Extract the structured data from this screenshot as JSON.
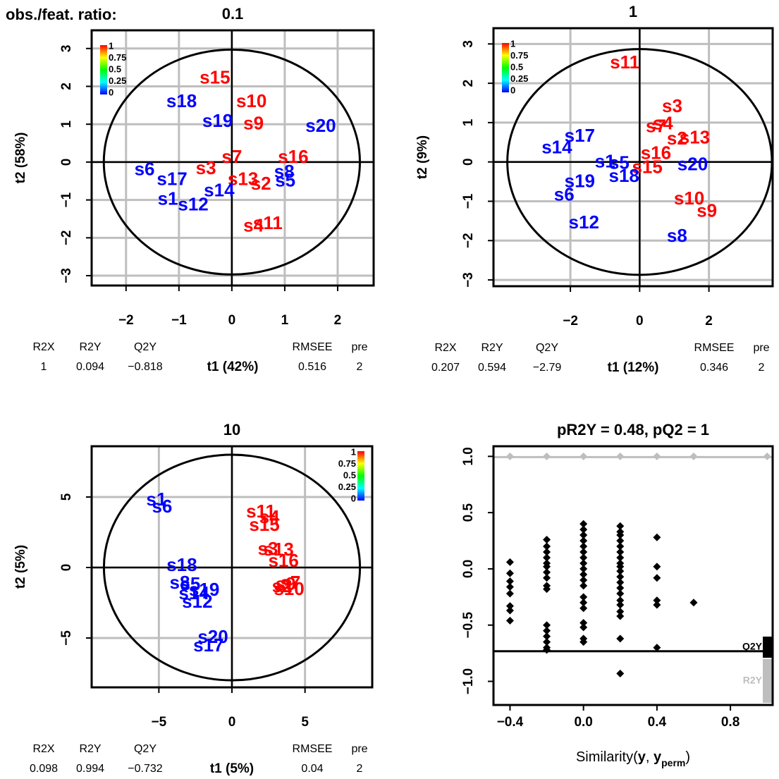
{
  "figure_label": "obs./feat. ratio:",
  "chart_data": [
    {
      "type": "scatter",
      "title": "0.1",
      "xlabel": "t1 (42%)",
      "ylabel": "t2 (58%)",
      "xlim": [
        -2.65,
        2.68
      ],
      "ylim": [
        -3.26,
        3.48
      ],
      "xticks": [
        {
          "value": -2,
          "label": "−2"
        },
        {
          "value": -1,
          "label": "−1"
        },
        0,
        1,
        2
      ],
      "yticks": [
        {
          "value": -3,
          "label": "−3"
        },
        {
          "value": -2,
          "label": "−2"
        },
        {
          "value": -1,
          "label": "−1"
        },
        0,
        1,
        2,
        3
      ],
      "grid": true,
      "ellipse": [
        2.42,
        2.97
      ],
      "labels": [
        "s15",
        "s18",
        "s10",
        "s19",
        "s9",
        "s20",
        "s7",
        "s16",
        "s3",
        "s6",
        "s17",
        "s13",
        "s2",
        "s8",
        "s5",
        "s1",
        "s14",
        "s12",
        "s11",
        "s4"
      ],
      "x": [
        -0.32,
        -0.95,
        0.37,
        -0.27,
        0.41,
        1.68,
        0,
        1.16,
        -0.49,
        -1.65,
        -1.13,
        0.21,
        0.55,
        0.99,
        1.01,
        -1.21,
        -0.24,
        -0.73,
        0.68,
        0.41
      ],
      "y": [
        2.2,
        1.58,
        1.58,
        1.06,
        0.99,
        0.93,
        0.11,
        0.11,
        -0.19,
        -0.22,
        -0.48,
        -0.48,
        -0.6,
        -0.28,
        -0.52,
        -1.0,
        -0.78,
        -1.15,
        -1.64,
        -1.71
      ],
      "colors": [
        "#ff0000",
        "#0000ff",
        "#ff0000",
        "#0000ff",
        "#ff0000",
        "#0000ff",
        "#ff0000",
        "#ff0000",
        "#ff0000",
        "#0000ff",
        "#0000ff",
        "#ff0000",
        "#ff0000",
        "#0000ff",
        "#0000ff",
        "#0000ff",
        "#0000ff",
        "#0000ff",
        "#ff0000",
        "#ff0000"
      ],
      "colorbar": {
        "corner": "top-left",
        "ticks": [
          0,
          0.25,
          0.5,
          0.75,
          1
        ],
        "colors": [
          "#0000ff",
          "#00ffff",
          "#00ff00",
          "#ffff00",
          "#ff0000"
        ]
      },
      "stats": {
        "names": [
          "R2X",
          "R2Y",
          "Q2Y",
          "RMSEE",
          "pre"
        ],
        "values": [
          1,
          0.094,
          {
            "value": -0.818,
            "label": "−0.818"
          },
          0.516,
          2
        ]
      }
    },
    {
      "type": "scatter",
      "title": "1",
      "xlabel": "t1 (12%)",
      "ylabel": "t2 (9%)",
      "xlim": [
        -4.22,
        3.84
      ],
      "ylim": [
        -3.16,
        3.4
      ],
      "xticks": [
        {
          "value": -2,
          "label": "−2"
        },
        0,
        2
      ],
      "yticks": [
        {
          "value": -3,
          "label": "−3"
        },
        {
          "value": -2,
          "label": "−2"
        },
        {
          "value": -1,
          "label": "−1"
        },
        0,
        1,
        2,
        3
      ],
      "grid": true,
      "ellipse": [
        3.82,
        2.87
      ],
      "labels": [
        "s11",
        "s3",
        "s7",
        "s4",
        "s13",
        "s2",
        "s17",
        "s14",
        "s16",
        "s1",
        "s5",
        "s15",
        "s18",
        "s20",
        "s19",
        "s6",
        "s12",
        "s10",
        "s9",
        "s8"
      ],
      "x": [
        -0.43,
        0.94,
        0.47,
        0.67,
        1.59,
        1.08,
        -1.73,
        -2.39,
        0.47,
        -1.0,
        -0.59,
        0.22,
        -0.45,
        1.53,
        -1.73,
        -2.18,
        -1.61,
        1.43,
        1.94,
        1.08
      ],
      "y": [
        2.5,
        1.39,
        0.88,
        0.95,
        0.59,
        0.57,
        0.64,
        0.34,
        0.2,
        -0.02,
        -0.05,
        -0.16,
        -0.38,
        -0.09,
        -0.52,
        -0.86,
        -1.57,
        -0.96,
        -1.27,
        -1.91
      ],
      "colors": [
        "#ff0000",
        "#ff0000",
        "#ff0000",
        "#ff0000",
        "#ff0000",
        "#ff0000",
        "#0000ff",
        "#0000ff",
        "#ff0000",
        "#0000ff",
        "#0000ff",
        "#ff0000",
        "#0000ff",
        "#0000ff",
        "#0000ff",
        "#0000ff",
        "#0000ff",
        "#ff0000",
        "#ff0000",
        "#0000ff"
      ],
      "colorbar": {
        "corner": "top-left",
        "ticks": [
          0,
          0.25,
          0.5,
          0.75,
          1
        ],
        "colors": [
          "#0000ff",
          "#00ffff",
          "#00ff00",
          "#ffff00",
          "#ff0000"
        ]
      },
      "stats": {
        "names": [
          "R2X",
          "R2Y",
          "Q2Y",
          "RMSEE",
          "pre"
        ],
        "values": [
          0.207,
          0.594,
          {
            "value": -2.79,
            "label": "−2.79"
          },
          0.346,
          2
        ]
      }
    },
    {
      "type": "scatter",
      "title": "10",
      "xlabel": "t1 (5%)",
      "ylabel": "t2 (5%)",
      "xlim": [
        -9.6,
        9.6
      ],
      "ylim": [
        -8.5,
        8.6
      ],
      "xticks": [
        {
          "value": -5,
          "label": "−5"
        },
        0,
        5
      ],
      "yticks": [
        {
          "value": -5,
          "label": "−5"
        },
        0,
        5
      ],
      "grid": true,
      "ellipse": [
        8.76,
        8.0
      ],
      "labels": [
        "s1",
        "s6",
        "s11",
        "s4",
        "s15",
        "s3",
        "s13",
        "s16",
        "s9",
        "s10",
        "s2",
        "s7",
        "s18",
        "s8",
        "s5",
        "s19",
        "s14",
        "s12",
        "s20",
        "s17"
      ],
      "x": [
        -5.17,
        -4.78,
        1.98,
        2.56,
        2.22,
        2.46,
        3.19,
        3.53,
        3.67,
        3.91,
        3.43,
        4.0,
        -3.43,
        -3.57,
        -2.85,
        -1.9,
        -2.6,
        -2.37,
        -1.3,
        -1.6
      ],
      "y": [
        4.75,
        4.25,
        3.9,
        3.5,
        2.95,
        1.25,
        1.2,
        0.4,
        -1.25,
        -1.6,
        -1.4,
        -1.15,
        0.1,
        -1.15,
        -1.25,
        -1.65,
        -1.9,
        -2.5,
        -5.0,
        -5.6
      ],
      "colors": [
        "#0000ff",
        "#0000ff",
        "#ff0000",
        "#ff0000",
        "#ff0000",
        "#ff0000",
        "#ff0000",
        "#ff0000",
        "#ff0000",
        "#ff0000",
        "#ff0000",
        "#ff0000",
        "#0000ff",
        "#0000ff",
        "#0000ff",
        "#0000ff",
        "#0000ff",
        "#0000ff",
        "#0000ff",
        "#0000ff"
      ],
      "colorbar": {
        "corner": "top-right",
        "ticks": [
          0,
          0.25,
          0.5,
          0.75,
          1
        ],
        "colors": [
          "#0000ff",
          "#00ffff",
          "#00ff00",
          "#ffff00",
          "#ff0000"
        ]
      },
      "stats": {
        "names": [
          "R2X",
          "R2Y",
          "Q2Y",
          "RMSEE",
          "pre"
        ],
        "values": [
          0.098,
          0.994,
          {
            "value": -0.732,
            "label": "−0.732"
          },
          0.04,
          2
        ]
      }
    },
    {
      "type": "permutation",
      "title": "pR2Y = 0.48, pQ2 = 1",
      "xlabel": [
        "Similarity(",
        "y",
        ", ",
        "y",
        "perm",
        ")"
      ],
      "xlim": [
        -0.49,
        1.03
      ],
      "ylim": [
        -1.21,
        1.09
      ],
      "xticks": [
        {
          "value": -0.4,
          "label": "−0.4"
        },
        {
          "value": 0,
          "label": "0.0"
        },
        0.4,
        0.8
      ],
      "yticks": [
        {
          "value": -1,
          "label": "−1.0"
        },
        {
          "value": -0.5,
          "label": "−0.5"
        },
        {
          "value": 0,
          "label": "0.0"
        },
        0.5,
        {
          "value": 1,
          "label": "1.0"
        }
      ],
      "legend": "bottom-right",
      "model": {
        "R2Y": 0.994,
        "Q2Y": -0.732
      },
      "series": [
        {
          "name": "R2Y",
          "color": "#bebebe",
          "x": [
            -0.4,
            -0.2,
            0,
            0.2,
            0.4,
            0.6,
            1
          ],
          "values": [
            1,
            1,
            1,
            1,
            1,
            1,
            1
          ]
        },
        {
          "name": "Q2Y",
          "color": "#000000",
          "x": [
            -0.4,
            -0.4,
            -0.4,
            -0.4,
            -0.4,
            -0.4,
            -0.4,
            -0.4,
            -0.2,
            -0.2,
            -0.2,
            -0.2,
            -0.2,
            -0.2,
            -0.2,
            -0.2,
            -0.2,
            -0.2,
            -0.2,
            -0.2,
            -0.2,
            -0.2,
            -0.2,
            -0.2,
            0,
            0,
            0,
            0,
            0,
            0,
            0,
            0,
            0,
            0,
            0,
            0,
            0,
            0,
            0,
            0,
            0,
            0,
            0,
            0.2,
            0.2,
            0.2,
            0.2,
            0.2,
            0.2,
            0.2,
            0.2,
            0.2,
            0.2,
            0.2,
            0.2,
            0.2,
            0.2,
            0.2,
            0.2,
            0.2,
            0.2,
            0.2,
            0.2,
            0.4,
            0.4,
            0.4,
            0.4,
            0.4,
            0.4,
            0.6
          ],
          "values": [
            0.06,
            -0.04,
            -0.11,
            -0.16,
            -0.22,
            -0.33,
            -0.37,
            -0.46,
            0.26,
            0.2,
            0.15,
            0.1,
            0.05,
            0.02,
            -0.03,
            -0.08,
            -0.15,
            -0.18,
            -0.5,
            -0.55,
            -0.6,
            -0.65,
            -0.7,
            -0.72,
            0.4,
            0.35,
            0.3,
            0.25,
            0.2,
            0.15,
            0.1,
            0.05,
            0,
            -0.05,
            -0.1,
            -0.15,
            -0.25,
            -0.3,
            -0.35,
            -0.48,
            -0.52,
            -0.62,
            -0.65,
            0.38,
            0.33,
            0.3,
            0.25,
            0.2,
            0.15,
            0.1,
            0.05,
            0.02,
            -0.02,
            -0.07,
            -0.12,
            -0.17,
            -0.22,
            -0.28,
            -0.32,
            -0.38,
            -0.42,
            -0.62,
            -0.93,
            0.28,
            0.02,
            -0.08,
            -0.28,
            -0.32,
            -0.7,
            -0.3
          ]
        }
      ]
    }
  ]
}
